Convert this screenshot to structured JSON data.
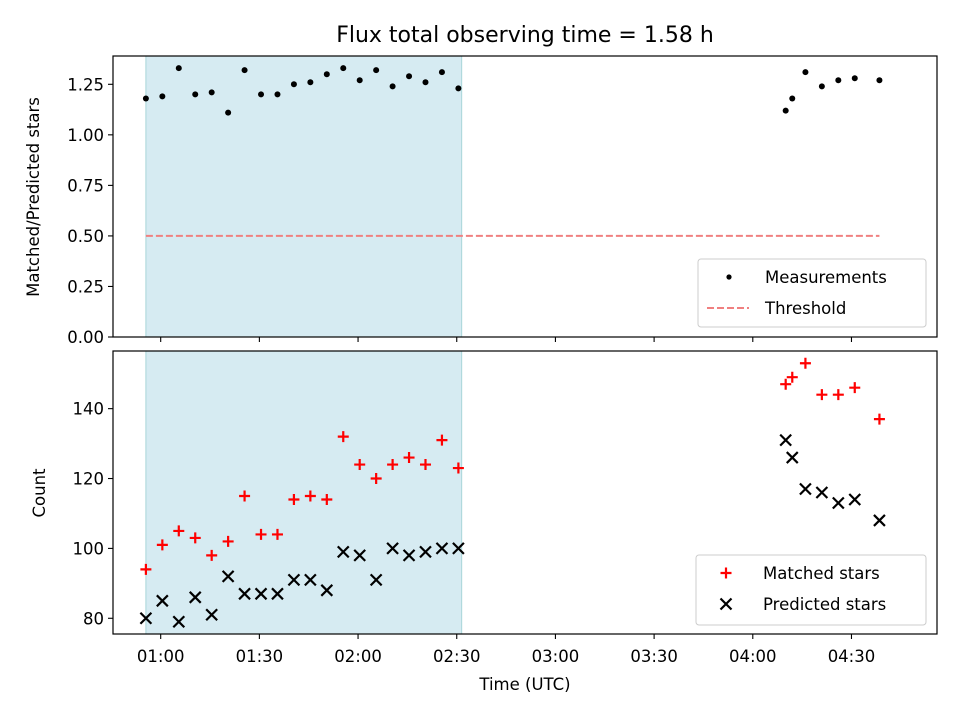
{
  "chart_data": {
    "type": "scatter",
    "title": "Flux total observing time = 1.58 h",
    "xlabel": "Time (UTC)",
    "x_ticks": [
      "01:00",
      "01:30",
      "02:00",
      "02:30",
      "03:00",
      "03:30",
      "04:00",
      "04:30"
    ],
    "x_tick_minutes": [
      60,
      90,
      120,
      150,
      180,
      210,
      240,
      270
    ],
    "x_range_minutes": [
      45.5,
      296
    ],
    "shaded_span_minutes": [
      55.5,
      151.5
    ],
    "panels": [
      {
        "id": "ratio",
        "ylabel": "Matched/Predicted stars",
        "ylim": [
          0,
          1.39
        ],
        "y_ticks": [
          "0.00",
          "0.25",
          "0.50",
          "0.75",
          "1.00",
          "1.25"
        ],
        "y_tick_values": [
          0,
          0.25,
          0.5,
          0.75,
          1.0,
          1.25
        ],
        "legend_position": "lower-right",
        "series": [
          {
            "name": "Measurements",
            "marker": "dot",
            "color": "#000000",
            "x_minutes": [
              55.5,
              60.5,
              65.5,
              70.5,
              75.5,
              80.5,
              85.5,
              90.5,
              95.5,
              100.5,
              105.5,
              110.5,
              115.5,
              120.5,
              125.5,
              130.5,
              135.5,
              140.5,
              145.5,
              150.5,
              250,
              252,
              256,
              261,
              266,
              271,
              278.5
            ],
            "values": [
              1.18,
              1.19,
              1.33,
              1.2,
              1.21,
              1.11,
              1.32,
              1.2,
              1.2,
              1.25,
              1.26,
              1.3,
              1.33,
              1.27,
              1.32,
              1.24,
              1.29,
              1.26,
              1.31,
              1.23,
              1.12,
              1.18,
              1.31,
              1.24,
              1.27,
              1.28,
              1.27
            ]
          },
          {
            "name": "Threshold",
            "marker": "dashed-line",
            "color": "#f08080",
            "x_minutes": [
              55.5,
              278.5
            ],
            "values": [
              0.5,
              0.5
            ]
          }
        ]
      },
      {
        "id": "count",
        "ylabel": "Count",
        "ylim": [
          75.5,
          156.5
        ],
        "y_ticks": [
          "80",
          "100",
          "120",
          "140"
        ],
        "y_tick_values": [
          80,
          100,
          120,
          140
        ],
        "legend_position": "lower-right",
        "series": [
          {
            "name": "Matched stars",
            "marker": "plus",
            "color": "#ff0000",
            "x_minutes": [
              55.5,
              60.5,
              65.5,
              70.5,
              75.5,
              80.5,
              85.5,
              90.5,
              95.5,
              100.5,
              105.5,
              110.5,
              115.5,
              120.5,
              125.5,
              130.5,
              135.5,
              140.5,
              145.5,
              150.5,
              250,
              252,
              256,
              261,
              266,
              271,
              278.5
            ],
            "values": [
              94,
              101,
              105,
              103,
              98,
              102,
              115,
              104,
              104,
              114,
              115,
              114,
              132,
              124,
              120,
              124,
              126,
              124,
              131,
              123,
              147,
              149,
              153,
              144,
              144,
              146,
              137
            ]
          },
          {
            "name": "Predicted stars",
            "marker": "x",
            "color": "#000000",
            "x_minutes": [
              55.5,
              60.5,
              65.5,
              70.5,
              75.5,
              80.5,
              85.5,
              90.5,
              95.5,
              100.5,
              105.5,
              110.5,
              115.5,
              120.5,
              125.5,
              130.5,
              135.5,
              140.5,
              145.5,
              150.5,
              250,
              252,
              256,
              261,
              266,
              271,
              278.5
            ],
            "values": [
              80,
              85,
              79,
              86,
              81,
              92,
              87,
              87,
              87,
              91,
              91,
              88,
              99,
              98,
              91,
              100,
              98,
              99,
              100,
              100,
              131,
              126,
              117,
              116,
              113,
              114,
              108
            ]
          }
        ]
      }
    ]
  }
}
